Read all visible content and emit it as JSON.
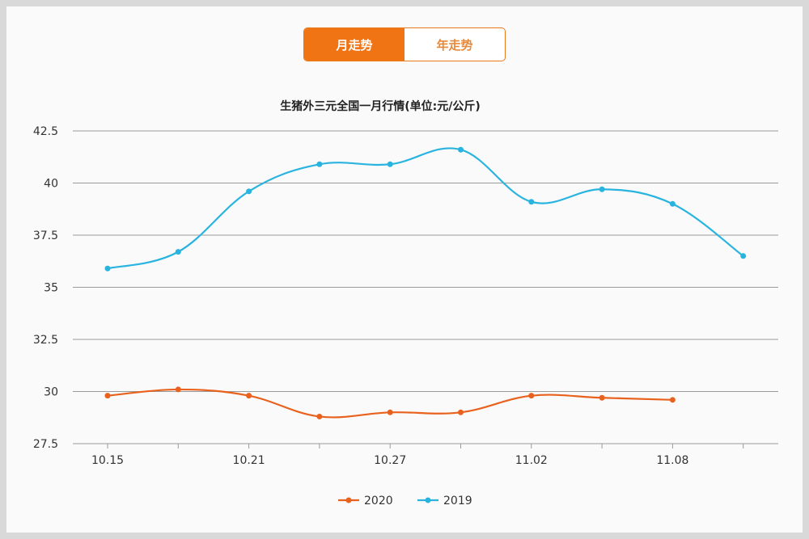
{
  "toggle": {
    "month_label": "月走势",
    "year_label": "年走势",
    "selected": "month"
  },
  "colors": {
    "accent": "#f07314",
    "series_2020": "#e8621e",
    "series_2019": "#29b4e0",
    "grid": "#9a9a9a"
  },
  "chart_data": {
    "type": "line",
    "title": "生猪外三元全国一月行情(单位:元/公斤)",
    "xlabel": "",
    "ylabel": "",
    "categories": [
      "10.15",
      "",
      "10.21",
      "",
      "10.27",
      "",
      "11.02",
      "",
      "11.08",
      ""
    ],
    "yticks": [
      "27.5",
      "30",
      "32.5",
      "35",
      "37.5",
      "40",
      "42.5"
    ],
    "ylim": [
      27.5,
      42.5
    ],
    "grid": true,
    "legend_position": "bottom",
    "series": [
      {
        "name": "2020",
        "values": [
          29.8,
          30.1,
          29.8,
          28.8,
          29.0,
          29.0,
          29.8,
          29.7,
          29.6,
          null
        ]
      },
      {
        "name": "2019",
        "values": [
          35.9,
          36.7,
          39.6,
          40.9,
          40.9,
          41.6,
          39.1,
          39.7,
          39.0,
          36.5
        ]
      }
    ]
  }
}
